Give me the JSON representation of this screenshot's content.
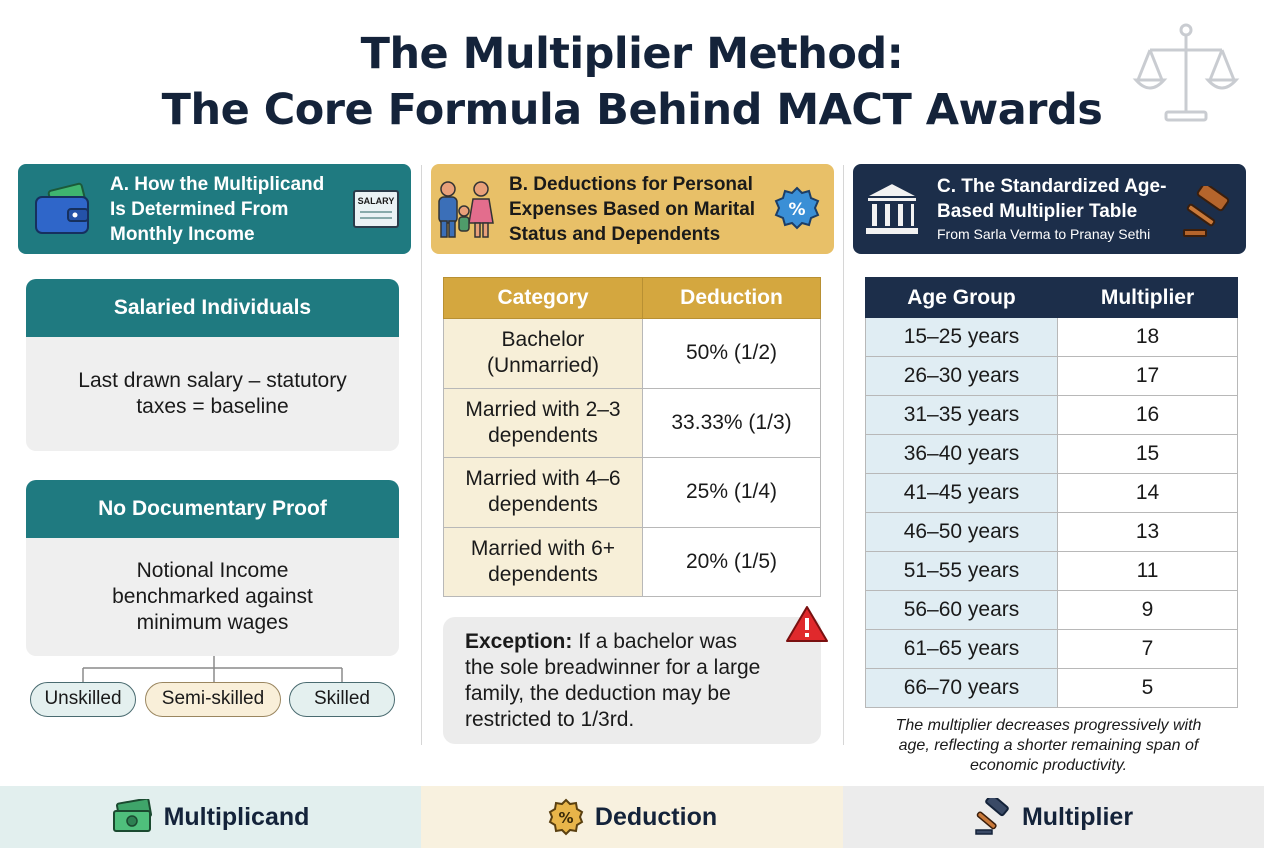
{
  "title": {
    "line1": "The Multiplier Method:",
    "line2": "The Core Formula Behind MACT Awards"
  },
  "icons": {
    "title": "scales-of-justice-icon",
    "section_a_left": "wallet-icon",
    "section_a_right": "salary-slip-icon",
    "section_b_left": "family-icon",
    "section_b_right": "percent-badge-icon",
    "section_c_left": "courthouse-icon",
    "section_c_right": "gavel-icon",
    "exception": "warning-icon"
  },
  "colors": {
    "teal": "#1f7a80",
    "gold": "#e8c068",
    "navy": "#1c2e4a",
    "warning_red": "#e0292c"
  },
  "section_a": {
    "heading_line1": "A. How the Multiplicand",
    "heading_line2": "Is Determined From",
    "heading_line3": "Monthly Income",
    "salary_icon_text": "SALARY",
    "card1_title": "Salaried Individuals",
    "card1_line1": "Last drawn salary – statutory",
    "card1_line2": "taxes = baseline",
    "card2_title": "No Documentary Proof",
    "card2_line1": "Notional Income",
    "card2_line2": "benchmarked against",
    "card2_line3": "minimum wages",
    "pills": [
      "Unskilled",
      "Semi-skilled",
      "Skilled"
    ]
  },
  "section_b": {
    "heading_line1": "B. Deductions for Personal",
    "heading_line2": "Expenses Based on Marital",
    "heading_line3": "Status and Dependents",
    "col_category": "Category",
    "col_deduction": "Deduction",
    "rows": [
      {
        "cat1": "Bachelor",
        "cat2": "(Unmarried)",
        "ded": "50% (1/2)"
      },
      {
        "cat1": "Married with 2–3",
        "cat2": "dependents",
        "ded": "33.33% (1/3)"
      },
      {
        "cat1": "Married with 4–6",
        "cat2": "dependents",
        "ded": "25% (1/4)"
      },
      {
        "cat1": "Married with 6+",
        "cat2": "dependents",
        "ded": "20% (1/5)"
      }
    ],
    "exception_label": "Exception:",
    "exception_l1": "If a bachelor was",
    "exception_l2": "the sole breadwinner for a large",
    "exception_l3": "family, the deduction may be",
    "exception_l4": "restricted to 1/3rd."
  },
  "section_c": {
    "heading_line1": "C. The Standardized Age-",
    "heading_line2": "Based Multiplier Table",
    "subheading": "From Sarla Verma to Pranay Sethi",
    "col_age": "Age Group",
    "col_multiplier": "Multiplier",
    "rows": [
      {
        "age": "15–25 years",
        "mult": "18"
      },
      {
        "age": "26–30 years",
        "mult": "17"
      },
      {
        "age": "31–35 years",
        "mult": "16"
      },
      {
        "age": "36–40 years",
        "mult": "15"
      },
      {
        "age": "41–45 years",
        "mult": "14"
      },
      {
        "age": "46–50 years",
        "mult": "13"
      },
      {
        "age": "51–55 years",
        "mult": "11"
      },
      {
        "age": "56–60 years",
        "mult": "9"
      },
      {
        "age": "61–65 years",
        "mult": "7"
      },
      {
        "age": "66–70 years",
        "mult": "5"
      }
    ],
    "note_l1": "The multiplier decreases progressively with",
    "note_l2": "age, reflecting a shorter remaining span of",
    "note_l3": "economic productivity."
  },
  "footer": {
    "f1_label": "Multiplicand",
    "f1_icon": "money-icon",
    "f2_label": "Deduction",
    "f2_icon": "percent-coin-icon",
    "f3_label": "Multiplier",
    "f3_icon": "gavel-icon"
  }
}
